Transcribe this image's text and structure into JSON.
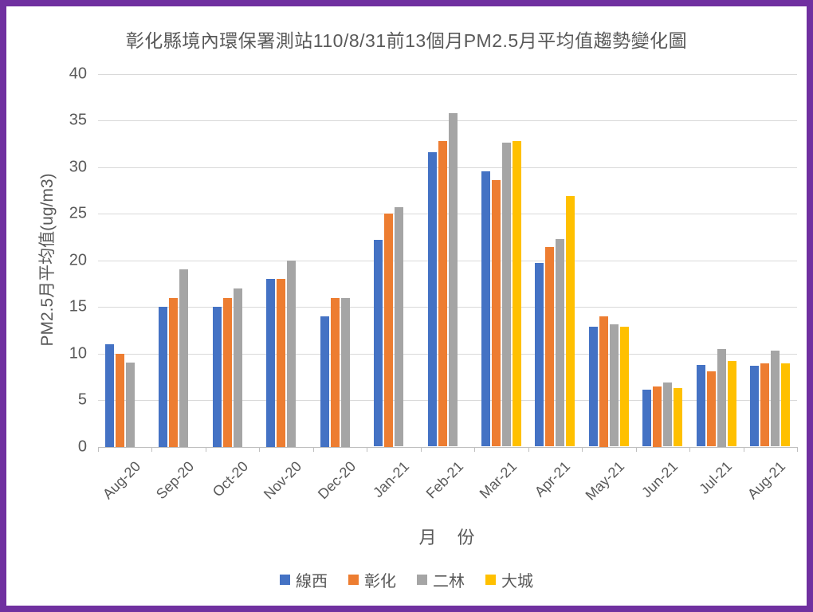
{
  "frame": {
    "border_color": "#7030A0",
    "background": "#FFFFFF",
    "text_color": "#595959",
    "gridline_color": "#D9D9D9",
    "axis_color": "#BFBFBF"
  },
  "chart_data": {
    "type": "bar",
    "title": "彰化縣境內環保署測站110/8/31前13個月PM2.5月平均值趨勢變化圖",
    "xlabel": "月　份",
    "ylabel": "PM2.5月平均值(ug/m3)",
    "ylim": [
      0,
      40
    ],
    "ytick_step": 5,
    "grid": "horizontal-only",
    "legend_position": "bottom",
    "categories": [
      "Aug-20",
      "Sep-20",
      "Oct-20",
      "Nov-20",
      "Dec-20",
      "Jan-21",
      "Feb-21",
      "Mar-21",
      "Apr-21",
      "May-21",
      "Jun-21",
      "Jul-21",
      "Aug-21"
    ],
    "series": [
      {
        "name": "線西",
        "color": "#4472C4",
        "values": [
          11.0,
          15.0,
          15.0,
          18.0,
          14.0,
          22.2,
          31.6,
          29.6,
          19.7,
          12.9,
          6.1,
          8.8,
          8.7
        ]
      },
      {
        "name": "彰化",
        "color": "#ED7D31",
        "values": [
          10.0,
          16.0,
          16.0,
          18.0,
          16.0,
          25.0,
          32.8,
          28.6,
          21.4,
          14.0,
          6.5,
          8.1,
          8.9
        ]
      },
      {
        "name": "二林",
        "color": "#A5A5A5",
        "values": [
          9.0,
          19.0,
          17.0,
          20.0,
          16.0,
          25.7,
          35.8,
          32.6,
          22.3,
          13.1,
          6.9,
          10.5,
          10.3
        ]
      },
      {
        "name": "大城",
        "color": "#FFC000",
        "values": [
          null,
          null,
          null,
          null,
          null,
          null,
          null,
          32.8,
          26.9,
          12.9,
          6.3,
          9.2,
          8.9
        ]
      }
    ]
  }
}
